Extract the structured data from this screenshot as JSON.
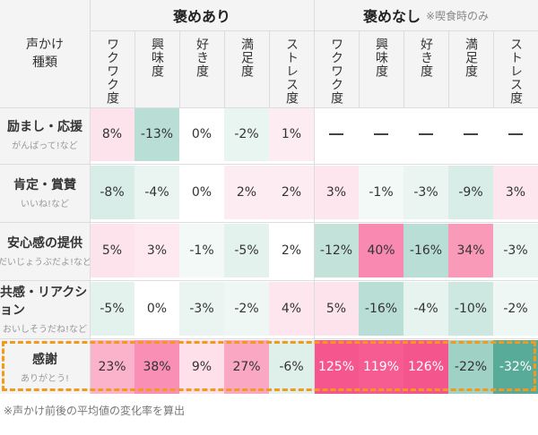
{
  "corner_label": [
    "声かけ",
    "種類"
  ],
  "groups": [
    {
      "title": "褒めあり",
      "note": ""
    },
    {
      "title": "褒めなし",
      "note": "※喫食時のみ"
    }
  ],
  "columns": [
    "ワクワク度",
    "興味度",
    "好き度",
    "満足度",
    "ストレス度",
    "ワクワク度",
    "興味度",
    "好き度",
    "満足度",
    "ストレス度"
  ],
  "rows": [
    {
      "name": "励まし・応援",
      "example": "がんばって!など",
      "values": [
        "8%",
        "-13%",
        "0%",
        "-2%",
        "1%",
        "—",
        "—",
        "—",
        "—",
        "—"
      ],
      "colors": [
        "#fde3ec",
        "#b9ded5",
        "#ffffff",
        "#e9f5f1",
        "#fdecf1",
        "#ffffff",
        "#ffffff",
        "#ffffff",
        "#ffffff",
        "#ffffff"
      ]
    },
    {
      "name": "肯定・賞賛",
      "example": "いいね!など",
      "values": [
        "-8%",
        "-4%",
        "0%",
        "2%",
        "2%",
        "3%",
        "-1%",
        "-3%",
        "-9%",
        "3%"
      ],
      "colors": [
        "#d8ede7",
        "#eaf5f1",
        "#ffffff",
        "#fdecf1",
        "#fdecf1",
        "#fde6ee",
        "#f3f9f7",
        "#eaf5f1",
        "#d8ede7",
        "#fde6ee"
      ]
    },
    {
      "name": "安心感の提供",
      "example": "だいじょうぶだよ!など",
      "values": [
        "5%",
        "3%",
        "-1%",
        "-5%",
        "2%",
        "-12%",
        "40%",
        "-16%",
        "34%",
        "-3%"
      ],
      "colors": [
        "#fde3ec",
        "#fde9ef",
        "#f3f9f7",
        "#e3f2ed",
        "#ffffff",
        "#c2e2da",
        "#f989b0",
        "#b9ded5",
        "#f99ab9",
        "#eaf5f1"
      ]
    },
    {
      "name": "共感・リアクション",
      "example": "おいしそうだね!など",
      "values": [
        "-5%",
        "0%",
        "-3%",
        "-2%",
        "4%",
        "5%",
        "-16%",
        "-4%",
        "-10%",
        "-2%"
      ],
      "colors": [
        "#e3f2ed",
        "#ffffff",
        "#eaf5f1",
        "#eef7f4",
        "#fde6ee",
        "#fde3ec",
        "#b9ded5",
        "#e7f3ef",
        "#cde8e1",
        "#eef7f4"
      ]
    },
    {
      "name": "感謝",
      "example": "ありがとう!",
      "values": [
        "23%",
        "38%",
        "9%",
        "27%",
        "-6%",
        "125%",
        "119%",
        "126%",
        "-22%",
        "-32%"
      ],
      "colors": [
        "#fbb2cb",
        "#f98fb4",
        "#fde0ea",
        "#faa7c3",
        "#dff0eb",
        "#f5568e",
        "#f65c92",
        "#f5558d",
        "#9fd1c5",
        "#58ab98"
      ]
    }
  ],
  "white_text_threshold": [
    "125%",
    "119%",
    "126%",
    "-32%"
  ],
  "footnote": "※声かけ前後の平均値の変化率を算出",
  "highlight_color": "#f39a1e"
}
